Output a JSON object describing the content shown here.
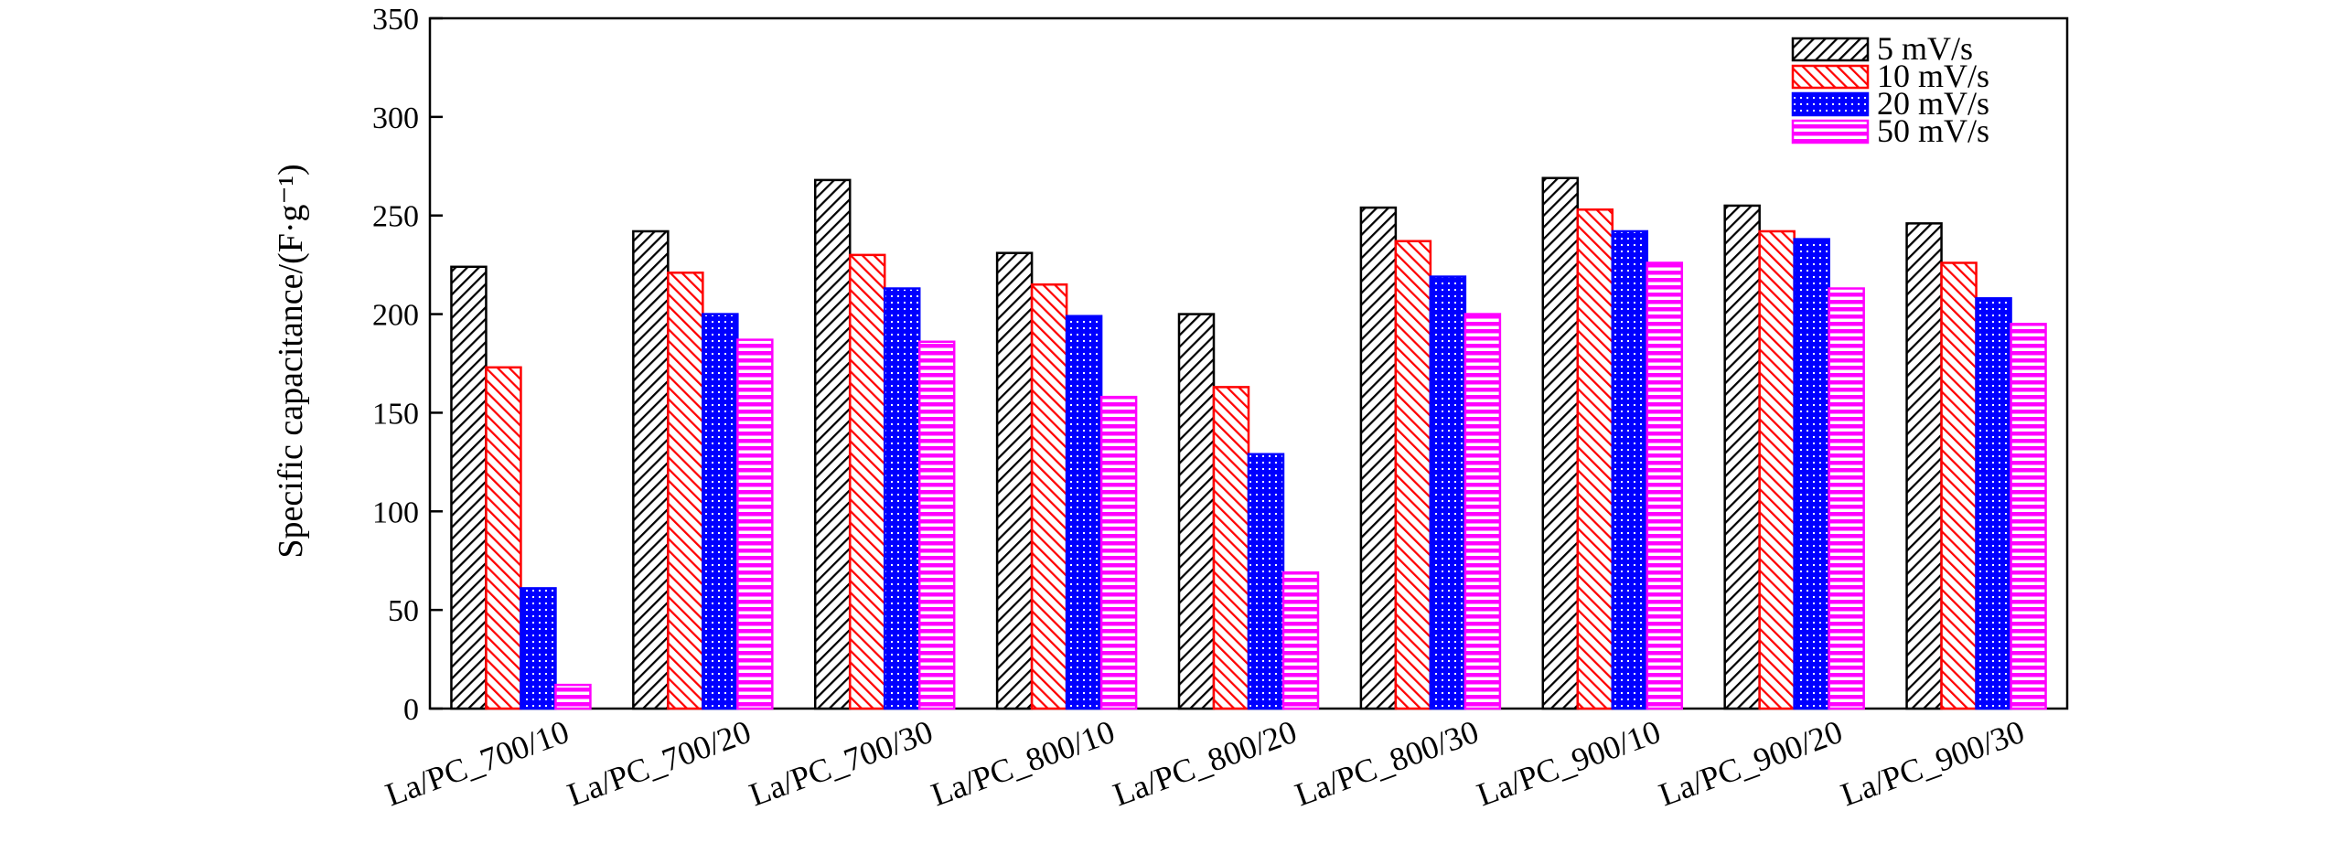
{
  "chart_data": {
    "type": "bar",
    "title": "",
    "xlabel": "",
    "ylabel": "Specific capacitance/(F·g⁻¹)",
    "ylim": [
      0,
      350
    ],
    "yticks": [
      0,
      50,
      100,
      150,
      200,
      250,
      300,
      350
    ],
    "grid": false,
    "legend_position": "top-right",
    "categories": [
      "La/PC_700/10",
      "La/PC_700/20",
      "La/PC_700/30",
      "La/PC_800/10",
      "La/PC_800/20",
      "La/PC_800/30",
      "La/PC_900/10",
      "La/PC_900/20",
      "La/PC_900/30"
    ],
    "series": [
      {
        "name": "5 mV/s",
        "color": "#000000",
        "pattern": "diagonal-hatch-right",
        "values": [
          224,
          242,
          268,
          231,
          200,
          254,
          269,
          255,
          246
        ]
      },
      {
        "name": "10 mV/s",
        "color": "#ff0000",
        "pattern": "diagonal-hatch-left",
        "values": [
          173,
          221,
          230,
          215,
          163,
          237,
          253,
          242,
          226
        ]
      },
      {
        "name": "20 mV/s",
        "color": "#0000ff",
        "pattern": "dots",
        "values": [
          61,
          200,
          213,
          199,
          129,
          219,
          242,
          238,
          208
        ]
      },
      {
        "name": "50 mV/s",
        "color": "#ff00ff",
        "pattern": "horizontal-lines",
        "values": [
          12,
          187,
          186,
          158,
          69,
          200,
          226,
          213,
          195
        ]
      }
    ]
  }
}
